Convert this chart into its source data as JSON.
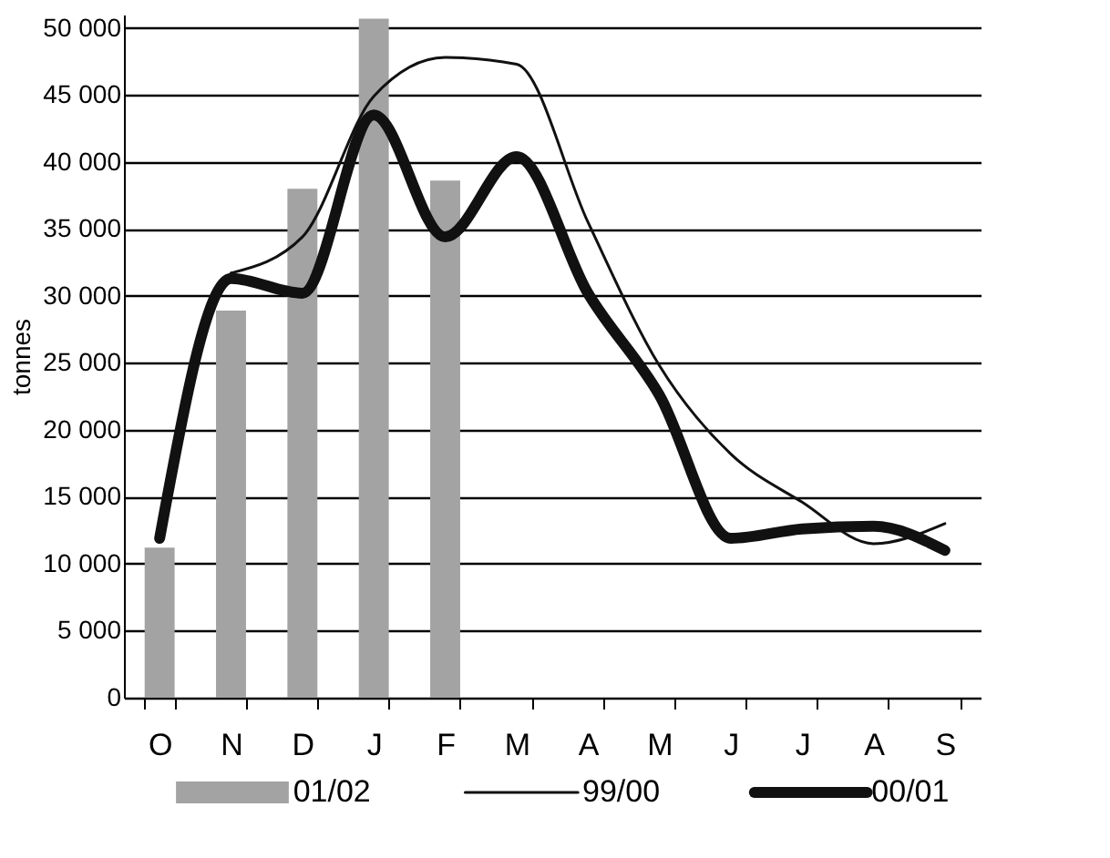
{
  "chart_data": {
    "type": "bar",
    "ylabel": "tonnes",
    "categories": [
      "O",
      "N",
      "D",
      "J",
      "F",
      "M",
      "A",
      "M",
      "J",
      "J",
      "A",
      "S"
    ],
    "series": [
      {
        "name": "01/02",
        "color": "#a3a3a3",
        "values": [
          11200,
          28900,
          38000,
          50700,
          38600,
          null,
          null,
          null,
          null,
          null,
          null,
          null
        ]
      },
      {
        "name": "99/00",
        "type": "line",
        "color": "#111111",
        "values": [
          null,
          31700,
          34400,
          44900,
          47800,
          47300,
          35500,
          24800,
          18200,
          14600,
          11500,
          13000
        ]
      },
      {
        "name": "00/01",
        "type": "line",
        "color": "#111111",
        "values": [
          11900,
          31300,
          30200,
          43500,
          34400,
          40400,
          30200,
          22600,
          11900,
          12600,
          12800,
          11000
        ]
      }
    ],
    "ylim": [
      0,
      51000
    ],
    "yticks": [
      {
        "value": 0,
        "label": "0"
      },
      {
        "value": 5000,
        "label": "5 000"
      },
      {
        "value": 10000,
        "label": "10 000"
      },
      {
        "value": 15000,
        "label": "15 000"
      },
      {
        "value": 20000,
        "label": "20 000"
      },
      {
        "value": 25000,
        "label": "25 000"
      },
      {
        "value": 30000,
        "label": "30 000"
      },
      {
        "value": 35000,
        "label": "35 000"
      },
      {
        "value": 40000,
        "label": "40 000"
      },
      {
        "value": 45000,
        "label": "45 000"
      },
      {
        "value": 50000,
        "label": "50 000"
      }
    ],
    "grid": "y",
    "legend": "bottom",
    "line_style": "solid",
    "marker": "none"
  }
}
